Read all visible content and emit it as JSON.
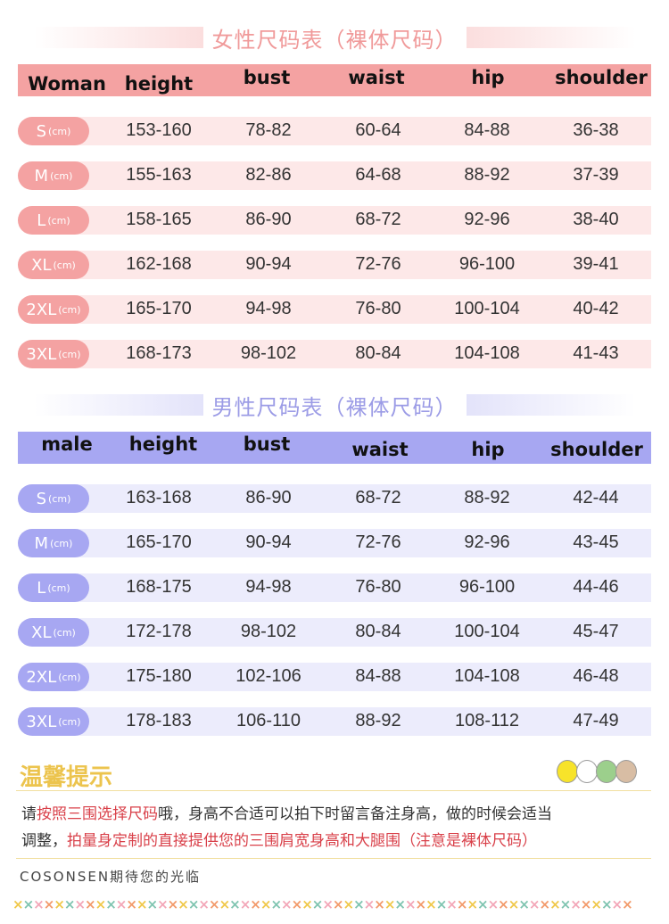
{
  "women": {
    "title": "女性尺码表（裸体尺码）",
    "color": "#f4a2a2",
    "headers": [
      "Woman",
      "height",
      "bust",
      "waist",
      "hip",
      "shoulder"
    ],
    "rows": [
      {
        "size": "S",
        "unit": "(cm)",
        "values": [
          "153-160",
          "78-82",
          "60-64",
          "84-88",
          "36-38"
        ]
      },
      {
        "size": "M",
        "unit": "(cm)",
        "values": [
          "155-163",
          "82-86",
          "64-68",
          "88-92",
          "37-39"
        ]
      },
      {
        "size": "L",
        "unit": "(cm)",
        "values": [
          "158-165",
          "86-90",
          "68-72",
          "92-96",
          "38-40"
        ]
      },
      {
        "size": "XL",
        "unit": "(cm)",
        "values": [
          "162-168",
          "90-94",
          "72-76",
          "96-100",
          "39-41"
        ]
      },
      {
        "size": "2XL",
        "unit": "(cm)",
        "values": [
          "165-170",
          "94-98",
          "76-80",
          "100-104",
          "40-42"
        ]
      },
      {
        "size": "3XL",
        "unit": "(cm)",
        "values": [
          "168-173",
          "98-102",
          "80-84",
          "104-108",
          "41-43"
        ]
      }
    ]
  },
  "men": {
    "title": "男性尺码表（裸体尺码）",
    "color": "#a7a7f2",
    "headers": [
      "male",
      "height",
      "bust",
      "waist",
      "hip",
      "shoulder"
    ],
    "rows": [
      {
        "size": "S",
        "unit": "(cm)",
        "values": [
          "163-168",
          "86-90",
          "68-72",
          "88-92",
          "42-44"
        ]
      },
      {
        "size": "M",
        "unit": "(cm)",
        "values": [
          "165-170",
          "90-94",
          "72-76",
          "92-96",
          "43-45"
        ]
      },
      {
        "size": "L",
        "unit": "(cm)",
        "values": [
          "168-175",
          "94-98",
          "76-80",
          "96-100",
          "44-46"
        ]
      },
      {
        "size": "XL",
        "unit": "(cm)",
        "values": [
          "172-178",
          "98-102",
          "80-84",
          "100-104",
          "45-47"
        ]
      },
      {
        "size": "2XL",
        "unit": "(cm)",
        "values": [
          "175-180",
          "102-106",
          "84-88",
          "104-108",
          "46-48"
        ]
      },
      {
        "size": "3XL",
        "unit": "(cm)",
        "values": [
          "178-183",
          "106-110",
          "88-92",
          "108-112",
          "47-49"
        ]
      }
    ]
  },
  "tips": {
    "title": "温馨提示",
    "line1": [
      {
        "text": "请",
        "red": false
      },
      {
        "text": "按照三围选择尺码",
        "red": true
      },
      {
        "text": "哦，身高不合适可以拍下时留言备注身高，做的时候会适当",
        "red": false
      }
    ],
    "line2": [
      {
        "text": "调整，",
        "red": false
      },
      {
        "text": "拍量身定制的直接提供您的三围肩宽身高和大腿围（注意是裸体尺码）",
        "red": true
      }
    ]
  },
  "brand": "COSONSEN期待您的光临"
}
